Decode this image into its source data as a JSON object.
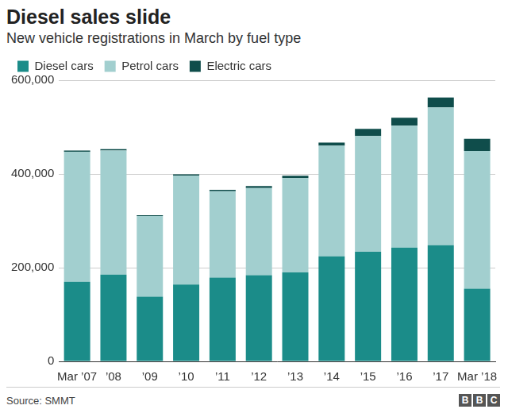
{
  "chart_data": {
    "type": "bar",
    "title": "Diesel sales slide",
    "subtitle": "New vehicle registrations in March by fuel type",
    "source": "Source: SMMT",
    "credit": "BBC",
    "categories": [
      "Mar ’07",
      "’08",
      "’09",
      "’10",
      "’11",
      "’12",
      "’13",
      "’14",
      "’15",
      "’16",
      "’17",
      "Mar ’18"
    ],
    "series": [
      {
        "name": "Diesel cars",
        "color": "#1b8c89",
        "values": [
          170000,
          185000,
          138000,
          164000,
          179000,
          184000,
          190000,
          224000,
          234000,
          243000,
          248000,
          155000
        ]
      },
      {
        "name": "Petrol cars",
        "color": "#a2cfcf",
        "values": [
          277000,
          265000,
          172000,
          232000,
          184000,
          186000,
          201000,
          236000,
          247000,
          260000,
          294000,
          294000
        ]
      },
      {
        "name": "Electric cars",
        "color": "#0f4d4b",
        "values": [
          3000,
          3000,
          2000,
          3000,
          3000,
          4000,
          5000,
          7000,
          15000,
          17000,
          21000,
          26000
        ]
      }
    ],
    "ylim": [
      0,
      600000
    ],
    "yticks": [
      0,
      {
        "value": 200000,
        "label": "200,000"
      },
      {
        "value": 400000,
        "label": "400,000"
      },
      {
        "value": 600000,
        "label": "600,000"
      }
    ],
    "stacked": true,
    "grid": true,
    "legend": "top-left"
  }
}
